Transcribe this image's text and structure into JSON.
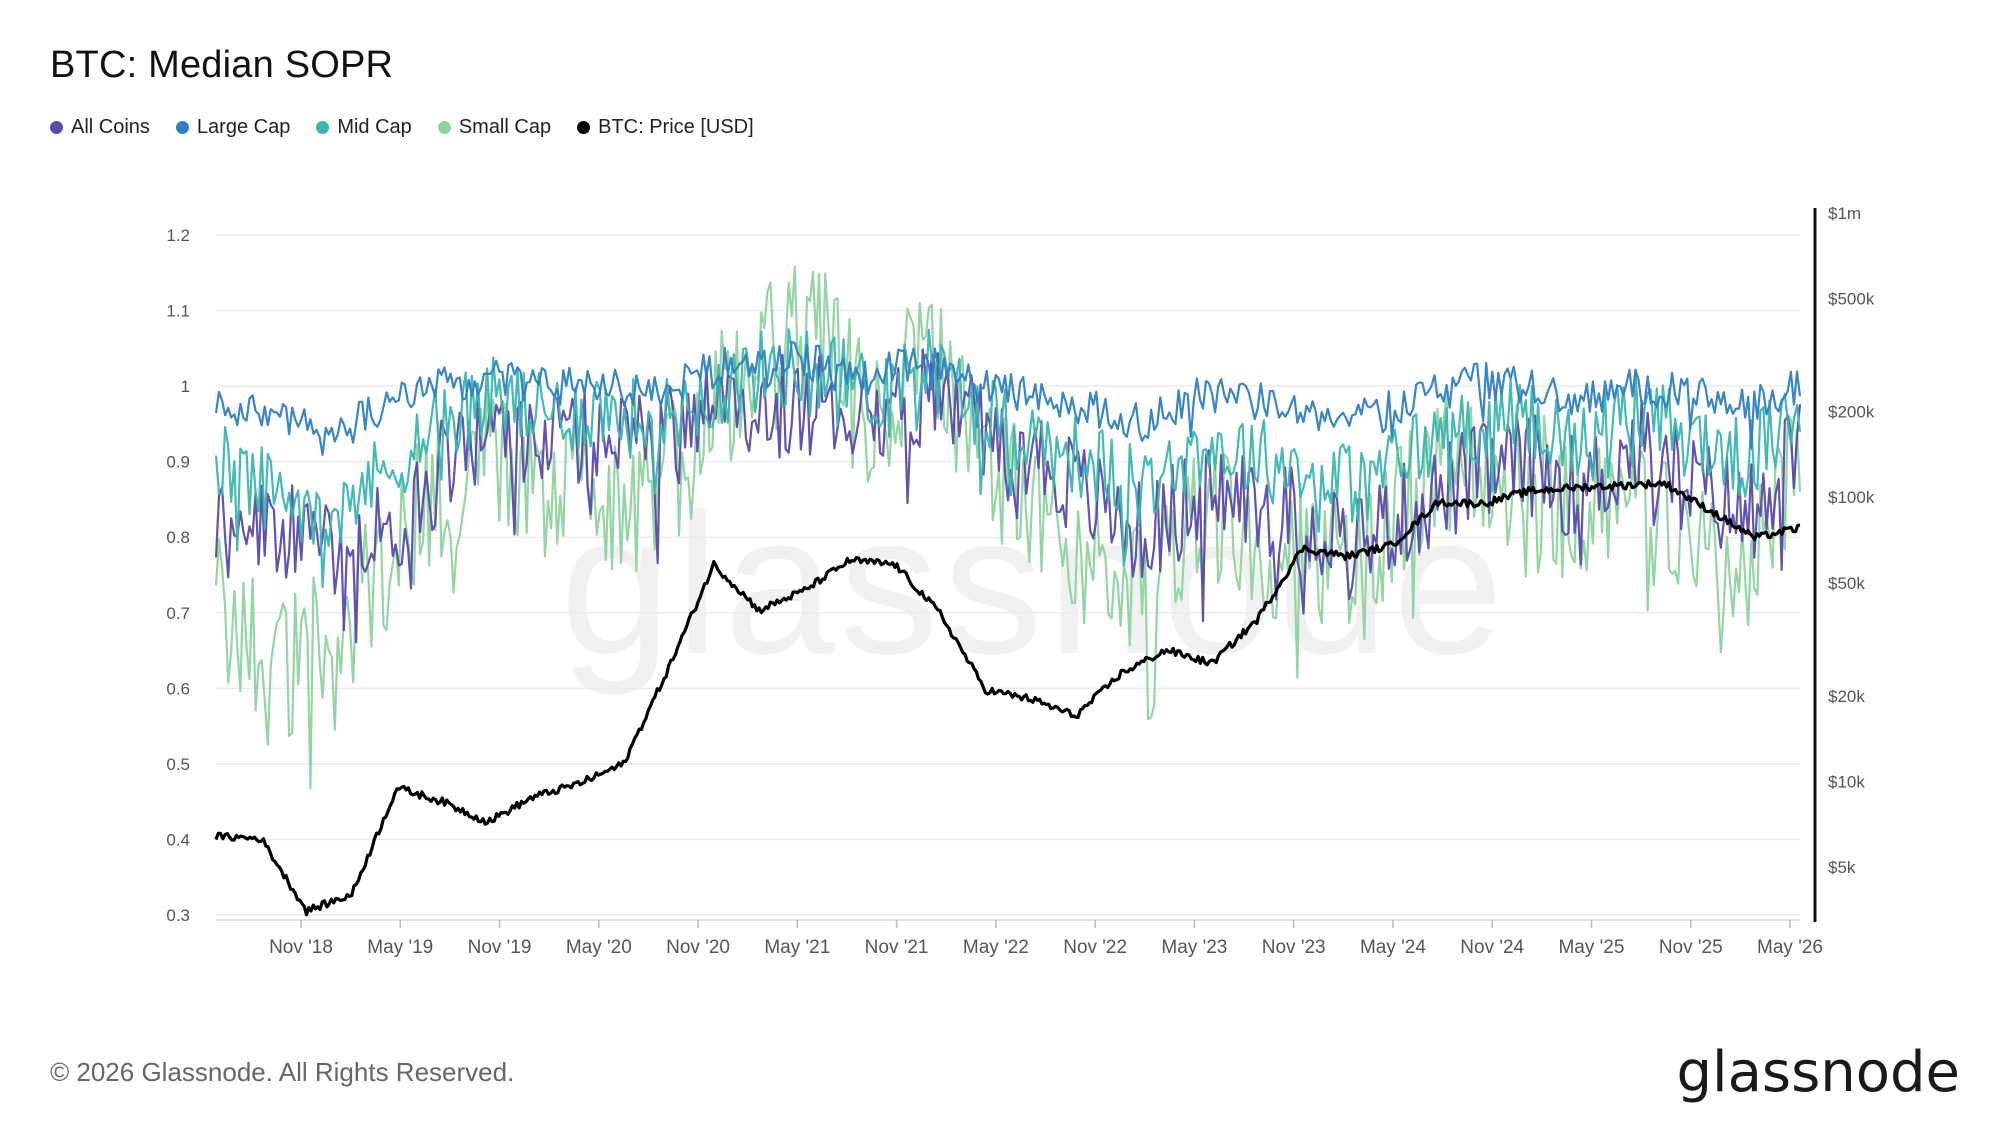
{
  "chart_data": {
    "type": "line",
    "title": "BTC: Median SOPR",
    "left_axis": {
      "ticks": [
        "0.3",
        "0.4",
        "0.5",
        "0.6",
        "0.7",
        "0.8",
        "0.9",
        "1",
        "1.1",
        "1.2"
      ],
      "min": 0.3,
      "max": 1.2
    },
    "right_axis": {
      "scale": "log",
      "ticks": [
        {
          "label": "$5k",
          "value": 5000
        },
        {
          "label": "$10k",
          "value": 10000
        },
        {
          "label": "$20k",
          "value": 20000
        },
        {
          "label": "$50k",
          "value": 50000
        },
        {
          "label": "$100k",
          "value": 100000
        },
        {
          "label": "$200k",
          "value": 200000
        },
        {
          "label": "$500k",
          "value": 500000
        },
        {
          "label": "$1m",
          "value": 1000000
        }
      ]
    },
    "x_ticks": [
      "Nov '18",
      "May '19",
      "Nov '19",
      "May '20",
      "Nov '20",
      "May '21",
      "Nov '21",
      "May '22",
      "Nov '22",
      "May '23",
      "Nov '23",
      "May '24",
      "Nov '24",
      "May '25",
      "Nov '25",
      "May '26"
    ],
    "series": [
      {
        "name": "All Coins",
        "color": "#5b4aa8",
        "axis": "left",
        "values": [
          0.84,
          0.82,
          0.78,
          0.8,
          0.88,
          0.95,
          0.93,
          0.94,
          0.92,
          0.96,
          0.97,
          0.98,
          0.96,
          0.99,
          0.95,
          0.91,
          0.85,
          0.8,
          0.86,
          0.85,
          0.82,
          0.8,
          0.84,
          0.88,
          0.9,
          0.86,
          0.92,
          0.87,
          0.83,
          0.92
        ]
      },
      {
        "name": "Large Cap",
        "color": "#2f7fc1",
        "axis": "left",
        "values": [
          0.98,
          0.96,
          0.94,
          0.97,
          1.0,
          1.01,
          1.0,
          1.0,
          0.99,
          1.02,
          1.04,
          1.03,
          1.01,
          1.04,
          1.0,
          0.99,
          0.97,
          0.95,
          0.99,
          0.98,
          0.97,
          0.96,
          0.99,
          1.01,
          1.0,
          0.98,
          1.0,
          0.99,
          0.97,
          1.0
        ]
      },
      {
        "name": "Mid Cap",
        "color": "#3bb5b0",
        "axis": "left",
        "values": [
          0.9,
          0.86,
          0.84,
          0.88,
          0.95,
          0.99,
          0.96,
          0.97,
          0.95,
          0.99,
          1.02,
          1.03,
          0.99,
          1.03,
          0.97,
          0.93,
          0.9,
          0.86,
          0.92,
          0.91,
          0.88,
          0.87,
          0.92,
          0.95,
          0.96,
          0.92,
          0.97,
          0.93,
          0.9,
          0.96
        ]
      },
      {
        "name": "Small Cap",
        "color": "#8fd3a0",
        "axis": "left",
        "values": [
          0.72,
          0.62,
          0.66,
          0.75,
          0.86,
          0.92,
          0.88,
          0.85,
          0.84,
          0.96,
          1.05,
          1.08,
          0.93,
          1.06,
          0.9,
          0.83,
          0.78,
          0.74,
          0.83,
          0.8,
          0.78,
          0.76,
          0.86,
          0.92,
          0.88,
          0.82,
          0.9,
          0.8,
          0.76,
          0.92
        ]
      },
      {
        "name": "BTC: Price [USD]",
        "color": "#000000",
        "axis": "right",
        "values": [
          6400,
          6300,
          3500,
          4000,
          9500,
          8500,
          7200,
          8800,
          9800,
          11500,
          25000,
          58000,
          40000,
          47000,
          60000,
          58000,
          39000,
          21000,
          19500,
          17000,
          24000,
          29000,
          26000,
          37000,
          66000,
          62000,
          68000,
          96000,
          95000,
          105000,
          108000,
          110000,
          112000,
          90000,
          72000,
          78000
        ]
      }
    ]
  },
  "legend": [
    {
      "label": "All Coins",
      "color": "#5b4aa8"
    },
    {
      "label": "Large Cap",
      "color": "#2f7fc1"
    },
    {
      "label": "Mid Cap",
      "color": "#3bb5b0"
    },
    {
      "label": "Small Cap",
      "color": "#8fd3a0"
    },
    {
      "label": "BTC: Price [USD]",
      "color": "#000000"
    }
  ],
  "watermark": "glassnode",
  "footer": "© 2026 Glassnode. All Rights Reserved.",
  "logo": "glassnode"
}
